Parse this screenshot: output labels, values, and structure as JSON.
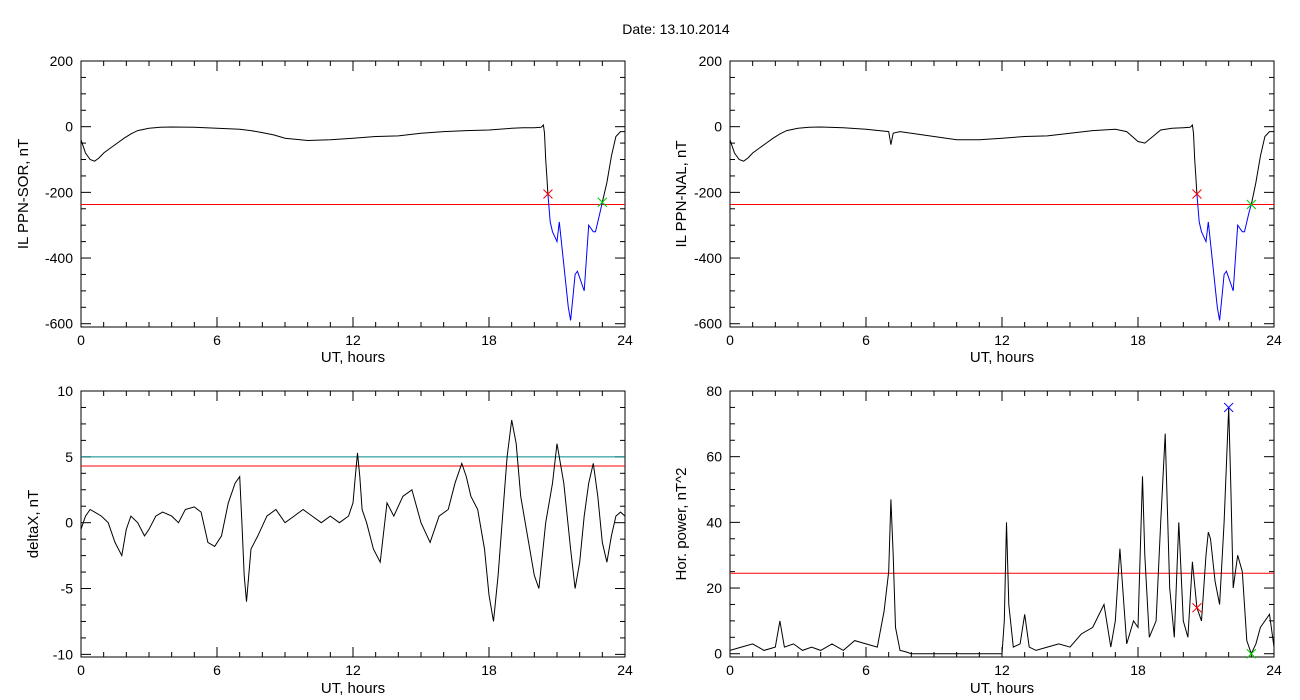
{
  "title": "Date:  13.10.2014",
  "chart_data": [
    {
      "type": "line",
      "ylabel": "IL PPN-SOR, nT",
      "xlabel": "UT, hours",
      "xlim": [
        0,
        24
      ],
      "ylim": [
        -610,
        200
      ],
      "xticks": [
        0,
        6,
        12,
        18,
        24
      ],
      "yticks": [
        -600,
        -400,
        -200,
        0,
        200
      ],
      "threshold": -237,
      "series": [
        {
          "color": "#000000",
          "x": [
            0,
            0.2,
            0.4,
            0.6,
            0.8,
            1.0,
            1.3,
            1.6,
            1.9,
            2.2,
            2.5,
            3.0,
            3.5,
            4.0,
            5.0,
            6.0,
            7.0,
            7.5,
            8.0,
            8.5,
            9.0,
            10.0,
            11.0,
            12.0,
            13.0,
            14.0,
            15.0,
            16.0,
            17.0,
            18.0,
            19.0,
            19.5,
            20.0,
            20.3,
            20.4,
            20.45,
            20.5,
            20.55,
            20.6
          ],
          "y": [
            -40,
            -80,
            -100,
            -105,
            -95,
            -80,
            -65,
            -50,
            -35,
            -22,
            -12,
            -5,
            -2,
            -1,
            -2,
            -5,
            -8,
            -12,
            -18,
            -25,
            -35,
            -42,
            -40,
            -35,
            -30,
            -28,
            -20,
            -15,
            -12,
            -10,
            -5,
            -3,
            -3,
            -2,
            5,
            -20,
            -100,
            -150,
            -205
          ]
        },
        {
          "color": "#0000ff",
          "x": [
            20.6,
            20.7,
            20.8,
            21.0,
            21.1,
            21.3,
            21.5,
            21.6,
            21.7,
            21.8,
            21.9,
            22.0,
            22.2,
            22.4,
            22.6,
            22.7,
            22.9,
            23.0
          ],
          "y": [
            -205,
            -290,
            -320,
            -350,
            -290,
            -420,
            -550,
            -590,
            -520,
            -450,
            -440,
            -460,
            -500,
            -300,
            -320,
            -320,
            -260,
            -230
          ]
        },
        {
          "color": "#000000",
          "x": [
            23.0,
            23.2,
            23.4,
            23.6,
            23.8,
            24.0
          ],
          "y": [
            -230,
            -170,
            -90,
            -30,
            -15,
            -15
          ]
        }
      ],
      "markers": [
        {
          "x": 20.6,
          "y": -205,
          "color": "#ff0000"
        },
        {
          "x": 23.0,
          "y": -230,
          "color": "#00cc00"
        }
      ]
    },
    {
      "type": "line",
      "ylabel": "IL PPN-NAL, nT",
      "xlabel": "UT, hours",
      "xlim": [
        0,
        24
      ],
      "ylim": [
        -610,
        200
      ],
      "xticks": [
        0,
        6,
        12,
        18,
        24
      ],
      "yticks": [
        -600,
        -400,
        -200,
        0,
        200
      ],
      "threshold": -237,
      "series": [
        {
          "color": "#000000",
          "x": [
            0,
            0.2,
            0.4,
            0.6,
            0.8,
            1.0,
            1.3,
            1.6,
            1.9,
            2.2,
            2.5,
            3.0,
            3.5,
            4.0,
            5.0,
            6.0,
            7.0,
            7.1,
            7.2,
            7.5,
            8.0,
            9.0,
            10.0,
            11.0,
            12.0,
            13.0,
            14.0,
            15.0,
            16.0,
            17.0,
            17.5,
            18.0,
            18.3,
            19.0,
            19.5,
            20.0,
            20.3,
            20.4,
            20.45,
            20.5,
            20.55,
            20.6
          ],
          "y": [
            -40,
            -80,
            -100,
            -105,
            -95,
            -80,
            -65,
            -50,
            -35,
            -22,
            -12,
            -5,
            -2,
            -1,
            -3,
            -8,
            -15,
            -55,
            -20,
            -15,
            -20,
            -30,
            -40,
            -40,
            -35,
            -30,
            -28,
            -20,
            -12,
            -8,
            -15,
            -45,
            -50,
            -10,
            -5,
            -3,
            -2,
            5,
            -20,
            -100,
            -150,
            -205
          ]
        },
        {
          "color": "#0000ff",
          "x": [
            20.6,
            20.7,
            20.8,
            21.0,
            21.1,
            21.3,
            21.5,
            21.6,
            21.7,
            21.8,
            21.9,
            22.0,
            22.2,
            22.4,
            22.6,
            22.7,
            22.9,
            23.0
          ],
          "y": [
            -205,
            -290,
            -320,
            -350,
            -290,
            -420,
            -550,
            -590,
            -520,
            -450,
            -440,
            -460,
            -500,
            -300,
            -320,
            -320,
            -260,
            -237
          ]
        },
        {
          "color": "#000000",
          "x": [
            23.0,
            23.2,
            23.4,
            23.6,
            23.8,
            24.0
          ],
          "y": [
            -237,
            -170,
            -90,
            -30,
            -15,
            -15
          ]
        }
      ],
      "markers": [
        {
          "x": 20.6,
          "y": -205,
          "color": "#ff0000"
        },
        {
          "x": 23.0,
          "y": -237,
          "color": "#00cc00"
        }
      ]
    },
    {
      "type": "line",
      "ylabel": "deltaX, nT",
      "xlabel": "UT, hours",
      "xlim": [
        0,
        24
      ],
      "ylim": [
        -10.2,
        10
      ],
      "xticks": [
        0,
        6,
        12,
        18,
        24
      ],
      "yticks": [
        -10,
        -5,
        0,
        5,
        10
      ],
      "threshold": 4.3,
      "threshold2": 5.0,
      "series": [
        {
          "color": "#000000",
          "x": [
            0,
            0.2,
            0.4,
            0.6,
            0.9,
            1.2,
            1.5,
            1.8,
            2.0,
            2.2,
            2.5,
            2.8,
            3.0,
            3.3,
            3.6,
            4.0,
            4.3,
            4.6,
            5.0,
            5.3,
            5.6,
            5.9,
            6.2,
            6.5,
            6.8,
            7.0,
            7.1,
            7.2,
            7.3,
            7.5,
            7.8,
            8.2,
            8.6,
            9.0,
            9.4,
            9.8,
            10.2,
            10.6,
            11.0,
            11.4,
            11.8,
            12.0,
            12.1,
            12.2,
            12.3,
            12.4,
            12.6,
            12.9,
            13.2,
            13.5,
            13.8,
            14.2,
            14.6,
            15.0,
            15.4,
            15.8,
            16.2,
            16.5,
            16.8,
            17.0,
            17.2,
            17.5,
            17.8,
            18.0,
            18.2,
            18.4,
            18.6,
            18.8,
            19.0,
            19.2,
            19.4,
            19.7,
            20.0,
            20.2,
            20.5,
            20.8,
            21.0,
            21.3,
            21.6,
            21.8,
            22.0,
            22.2,
            22.4,
            22.6,
            22.8,
            23.0,
            23.2,
            23.4,
            23.6,
            23.8,
            24.0
          ],
          "y": [
            -0.5,
            0.5,
            1.0,
            0.8,
            0.5,
            0.0,
            -1.5,
            -2.5,
            -0.5,
            0.5,
            0.0,
            -1.0,
            -0.5,
            0.5,
            0.8,
            0.5,
            0.0,
            1.0,
            1.2,
            0.8,
            -1.5,
            -1.8,
            -1.0,
            1.5,
            3.0,
            3.5,
            0.0,
            -4.0,
            -6.0,
            -2.0,
            -1.0,
            0.5,
            1.0,
            0.0,
            0.5,
            1.0,
            0.5,
            0.0,
            0.5,
            0.0,
            0.5,
            1.5,
            3.5,
            5.3,
            3.5,
            1.0,
            0.0,
            -2.0,
            -3.0,
            1.5,
            0.5,
            2.0,
            2.5,
            0.0,
            -1.5,
            0.5,
            1.0,
            3.0,
            4.5,
            3.5,
            2.0,
            1.0,
            -2.0,
            -5.5,
            -7.5,
            -4.0,
            0.5,
            5.0,
            7.8,
            6.0,
            2.0,
            -1.0,
            -4.0,
            -5.0,
            0.0,
            3.0,
            6.0,
            3.0,
            -2.0,
            -5.0,
            -3.0,
            0.5,
            3.0,
            4.5,
            2.0,
            -1.5,
            -3.0,
            -1.0,
            0.5,
            0.8,
            0.5
          ]
        }
      ]
    },
    {
      "type": "line",
      "ylabel": "Hor. power, nT^2",
      "xlabel": "UT, hours",
      "xlim": [
        0,
        24
      ],
      "ylim": [
        -1,
        80
      ],
      "xticks": [
        0,
        6,
        12,
        18,
        24
      ],
      "yticks": [
        0,
        20,
        40,
        60,
        80
      ],
      "threshold": 24.5,
      "series": [
        {
          "color": "#000000",
          "x": [
            0,
            0.5,
            1.0,
            1.5,
            2.0,
            2.2,
            2.4,
            2.8,
            3.2,
            3.6,
            4.0,
            4.5,
            5.0,
            5.5,
            6.0,
            6.5,
            6.8,
            7.0,
            7.1,
            7.2,
            7.3,
            7.5,
            7.8,
            8.0,
            9.0,
            10.0,
            11.0,
            12.0,
            12.1,
            12.2,
            12.3,
            12.5,
            12.8,
            13.0,
            13.2,
            13.5,
            14.0,
            14.5,
            15.0,
            15.5,
            16.0,
            16.5,
            16.8,
            17.0,
            17.2,
            17.5,
            17.8,
            18.0,
            18.2,
            18.3,
            18.5,
            18.8,
            19.0,
            19.2,
            19.4,
            19.6,
            19.8,
            20.0,
            20.2,
            20.4,
            20.6,
            20.8,
            21.0,
            21.1,
            21.2,
            21.4,
            21.6,
            21.8,
            22.0,
            22.1,
            22.2,
            22.4,
            22.6,
            22.8,
            23.0,
            23.2,
            23.4,
            23.6,
            23.8,
            24.0
          ],
          "y": [
            1,
            2,
            3,
            1,
            2,
            10,
            2,
            3,
            1,
            2,
            1,
            3,
            1,
            4,
            3,
            2,
            13,
            25,
            47,
            30,
            8,
            1,
            0.5,
            0,
            0,
            0,
            0,
            0,
            10,
            40,
            15,
            2,
            3,
            12,
            2,
            1,
            2,
            3,
            2,
            6,
            8,
            15,
            2,
            10,
            32,
            3,
            10,
            8,
            54,
            30,
            5,
            10,
            40,
            67,
            20,
            5,
            40,
            10,
            5,
            28,
            14,
            10,
            30,
            37,
            35,
            22,
            15,
            40,
            75,
            50,
            20,
            30,
            25,
            4,
            0,
            3,
            8,
            10,
            12,
            2
          ]
        }
      ],
      "markers": [
        {
          "x": 20.6,
          "y": 14,
          "color": "#ff0000"
        },
        {
          "x": 22.0,
          "y": 75,
          "color": "#0000ff"
        },
        {
          "x": 23.0,
          "y": 0,
          "color": "#00cc00"
        }
      ]
    }
  ]
}
